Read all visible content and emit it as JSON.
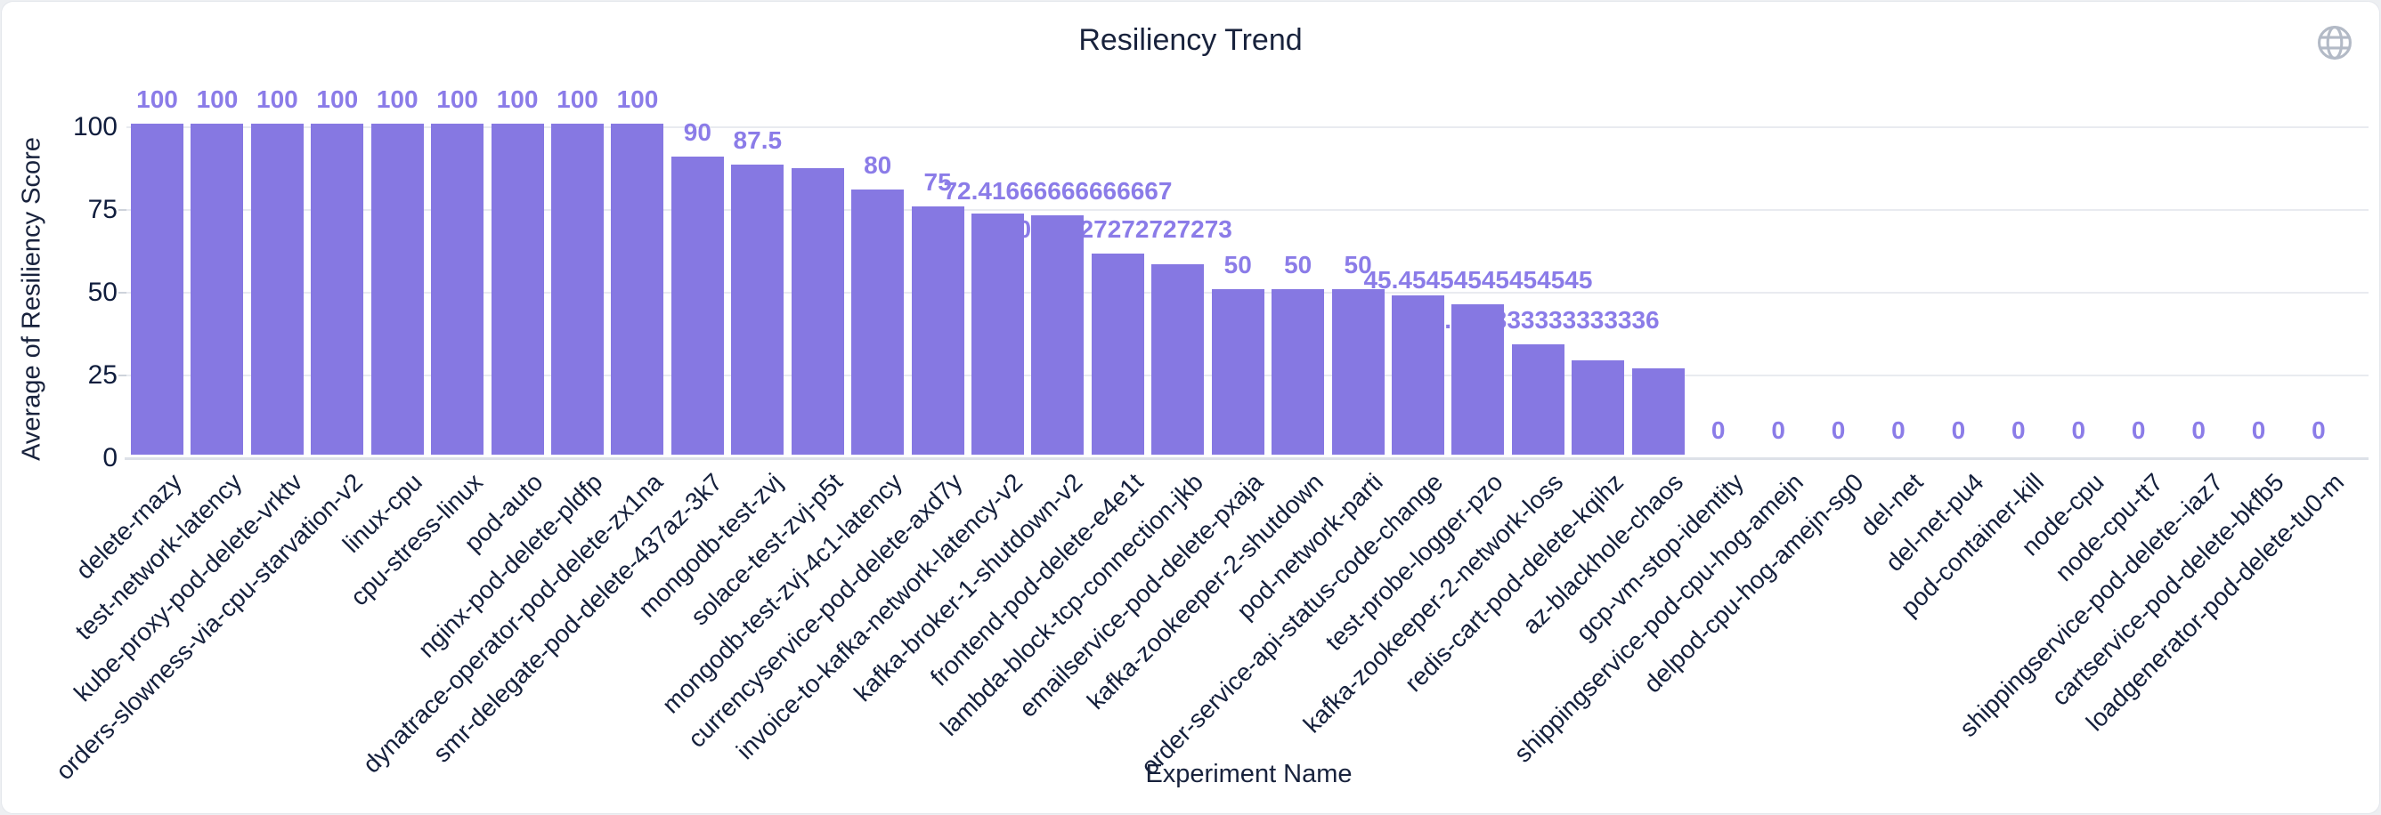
{
  "card": {
    "title": "Resiliency Trend"
  },
  "icons": {
    "top_right": "globe-icon"
  },
  "colors": {
    "bar": "#8678e2",
    "value_label": "#8b7ce8",
    "axis_text": "#101d3d",
    "title_text": "#18223c",
    "gridline": "#e9ebf0",
    "globe_icon": "#b3bac6"
  },
  "chart_data": {
    "type": "bar",
    "title": "Resiliency Trend",
    "xlabel": "Experiment Name",
    "ylabel": "Average of Resiliency Score",
    "ylim": [
      0,
      100
    ],
    "yticks": [
      0,
      25,
      50,
      75,
      100
    ],
    "grid": true,
    "legend": false,
    "categories": [
      "delete-rnazy",
      "test-network-latency",
      "kube-proxy-pod-delete-vrktv",
      "orders-slowness-via-cpu-starvation-v2",
      "linux-cpu",
      "cpu-stress-linux",
      "pod-auto",
      "nginx-pod-delete-pldfp",
      "dynatrace-operator-pod-delete-zx1na",
      "smr-delegate-pod-delete-437az-3k7",
      "mongodb-test-zvj",
      "solace-test-zvj-p5t",
      "mongodb-test-zvj-4c1-latency",
      "currencyservice-pod-delete-axd7y",
      "invoice-to-kafka-network-latency-v2",
      "kafka-broker-1-shutdown-v2",
      "frontend-pod-delete-e4e1t",
      "lambda-block-tcp-connection-jkb",
      "emailservice-pod-delete-pxaja",
      "kafka-zookeeper-2-shutdown",
      "pod-network-parti",
      "order-service-api-status-code-change",
      "test-probe-logger-pzo",
      "kafka-zookeeper-2-network-loss",
      "redis-cart-pod-delete-kqihz",
      "az-blackhole-chaos",
      "gcp-vm-stop-identity",
      "shippingservice-pod-cpu-hog-amejn",
      "delpod-cpu-hog-amejn-sg0",
      "del-net",
      "del-net-pu4",
      "pod-container-kill",
      "node-cpu",
      "node-cpu-tt7",
      "shippingservice-pod-delete--iaz7",
      "cartservice-pod-delete-bkfb5",
      "loadgenerator-pod-delete-tu0-m"
    ],
    "values": [
      100,
      100,
      100,
      100,
      100,
      100,
      100,
      100,
      100,
      90,
      87.5,
      86.5,
      80,
      75,
      72.75,
      72.41666666666667,
      60.72727272727273,
      57.5,
      50,
      50,
      50,
      48,
      45.45454545454545,
      33.333333333333336,
      28.5,
      26,
      0,
      0,
      0,
      0,
      0,
      0,
      0,
      0,
      0,
      0,
      0
    ],
    "value_labels": [
      "100",
      "100",
      "100",
      "100",
      "100",
      "100",
      "100",
      "100",
      "100",
      "90",
      "87.5",
      "",
      "80",
      "75",
      "",
      "72.41666666666667",
      "60.72727272727273",
      "",
      "50",
      "50",
      "50",
      "",
      "45.45454545454545",
      "33.333333333333336",
      "",
      "",
      "0",
      "0",
      "0",
      "0",
      "0",
      "0",
      "0",
      "0",
      "0",
      "0",
      "0"
    ]
  }
}
